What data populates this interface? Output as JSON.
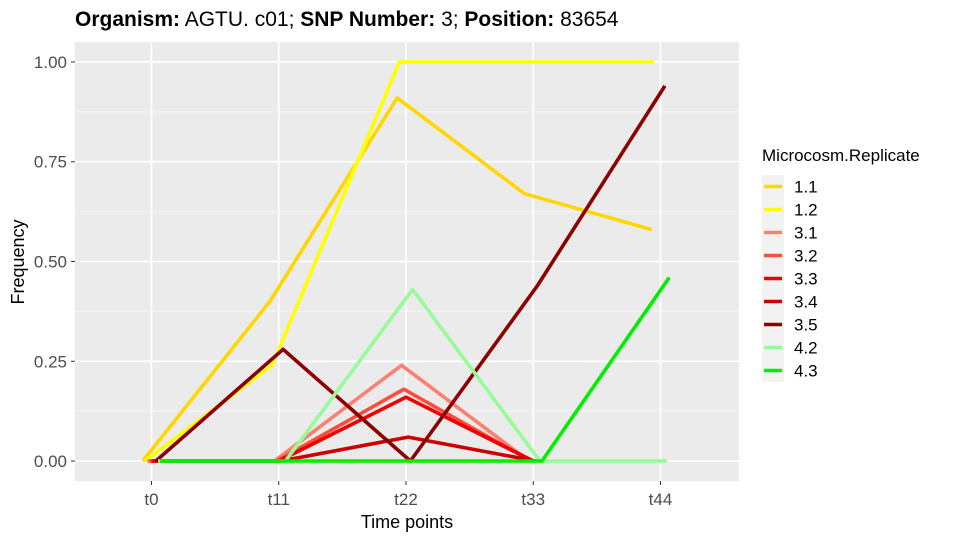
{
  "chart_data": {
    "type": "line",
    "title": {
      "parts": [
        {
          "text": "Organism:",
          "bold": true
        },
        {
          "text": " AGTU. c01; ",
          "bold": false
        },
        {
          "text": "SNP Number:",
          "bold": true
        },
        {
          "text": " 3; ",
          "bold": false
        },
        {
          "text": "Position:",
          "bold": true
        },
        {
          "text": " 83654",
          "bold": false
        }
      ]
    },
    "xlabel": "Time points",
    "ylabel": "Frequency",
    "categories": [
      "t0",
      "t11",
      "t22",
      "t33",
      "t44"
    ],
    "ylim": [
      -0.05,
      1.05
    ],
    "yticks": [
      0,
      0.25,
      0.5,
      0.75,
      1.0
    ],
    "ytick_labels": [
      "0.00",
      "0.25",
      "0.50",
      "0.75",
      "1.00"
    ],
    "grid": true,
    "legend": {
      "title": "Microcosm.Replicate",
      "placement": "right"
    },
    "series": [
      {
        "name": "1.1",
        "color": "#FFD700",
        "values": [
          0,
          0.4,
          0.91,
          0.67,
          0.58
        ]
      },
      {
        "name": "1.2",
        "color": "#FFFF00",
        "values": [
          0,
          0.24,
          1.0,
          1.0,
          1.0
        ]
      },
      {
        "name": "3.1",
        "color": "#FA8072",
        "values": [
          0,
          0,
          0.24,
          0,
          null
        ]
      },
      {
        "name": "3.2",
        "color": "#FF4C3B",
        "values": [
          0,
          0,
          0.18,
          0,
          null
        ]
      },
      {
        "name": "3.3",
        "color": "#EE0000",
        "values": [
          0,
          0,
          0.16,
          0,
          null
        ]
      },
      {
        "name": "3.4",
        "color": "#CC0000",
        "values": [
          0,
          0,
          0.06,
          0,
          null
        ]
      },
      {
        "name": "3.5",
        "color": "#8B0000",
        "values": [
          0,
          0.28,
          0,
          0.44,
          0.94
        ]
      },
      {
        "name": "4.2",
        "color": "#98FB98",
        "values": [
          0,
          0,
          0.43,
          0,
          0
        ]
      },
      {
        "name": "4.3",
        "color": "#00EE00",
        "values": [
          0,
          0,
          0,
          0,
          0.46
        ]
      }
    ]
  }
}
